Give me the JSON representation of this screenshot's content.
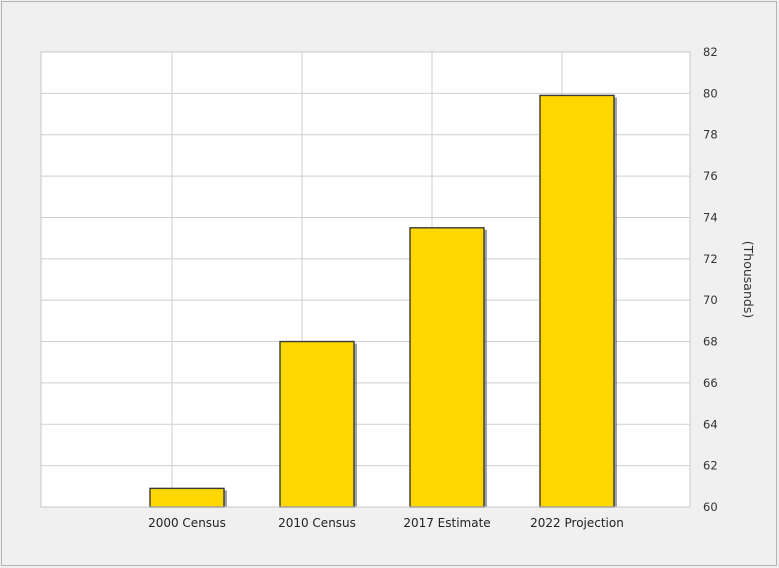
{
  "chart_data": {
    "type": "bar",
    "categories": [
      "2000 Census",
      "2010 Census",
      "2017 Estimate",
      "2022 Projection"
    ],
    "values": [
      60.9,
      68.0,
      73.5,
      79.9
    ],
    "ylabel": "(Thousands)",
    "ylim": [
      60,
      82
    ],
    "yticks": [
      60,
      62,
      64,
      66,
      68,
      70,
      72,
      74,
      76,
      78,
      80,
      82
    ],
    "y_axis_side": "right",
    "grid": true,
    "legend": "none",
    "colors": {
      "bar_fill": "#ffd700",
      "bar_edge": "#3a3a3a",
      "plot_background": "#ffffff",
      "grid": "#cfcfcf",
      "page_background": "#f0f0f0"
    }
  }
}
